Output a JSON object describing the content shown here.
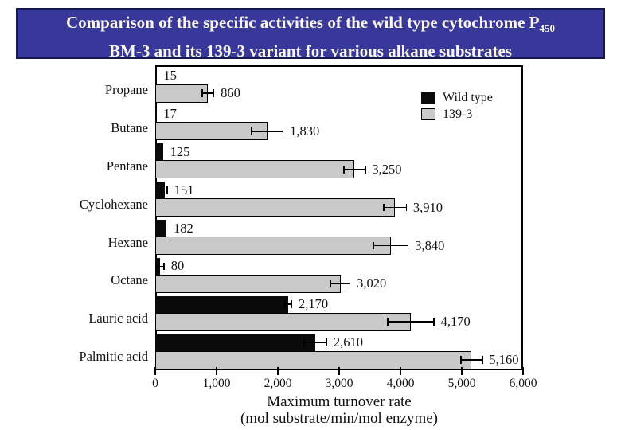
{
  "title": {
    "line1_pre": "Comparison of the specific activities of the wild type cytochrome P",
    "line1_sub": "450",
    "line2": "BM-3 and its 139-3 variant for various alkane substrates",
    "bg_color": "#38389A",
    "border_color": "#17174F",
    "text_color": "#FAF7E8"
  },
  "chart_data": {
    "type": "bar",
    "orientation": "horizontal",
    "title": "",
    "categories": [
      "Propane",
      "Butane",
      "Pentane",
      "Cyclohexane",
      "Hexane",
      "Octane",
      "Lauric acid",
      "Palmitic acid"
    ],
    "series": [
      {
        "name": "Wild type",
        "color": "#0A0A0A",
        "values": [
          15,
          17,
          125,
          151,
          182,
          80,
          2170,
          2610
        ],
        "labels": [
          "15",
          "17",
          "125",
          "151",
          "182",
          "80",
          "2,170",
          "2,610"
        ],
        "errors": [
          0,
          0,
          0,
          40,
          0,
          60,
          50,
          180
        ]
      },
      {
        "name": "139-3",
        "color": "#C9C9C9",
        "values": [
          860,
          1830,
          3250,
          3910,
          3840,
          3020,
          4170,
          5160
        ],
        "labels": [
          "860",
          "1,830",
          "3,250",
          "3,910",
          "3,840",
          "3,020",
          "4,170",
          "5,160"
        ],
        "errors": [
          90,
          250,
          170,
          180,
          280,
          150,
          370,
          170
        ]
      }
    ],
    "xlabel_line1": "Maximum turnover rate",
    "xlabel_line2": "(mol substrate/min/mol enzyme)",
    "xlim": [
      0,
      6000
    ],
    "xticks": [
      0,
      1000,
      2000,
      3000,
      4000,
      5000,
      6000
    ],
    "xtick_labels": [
      "0",
      "1,000",
      "2,000",
      "3,000",
      "4,000",
      "5,000",
      "6,000"
    ],
    "legend_position": "top-right",
    "grid": false
  }
}
